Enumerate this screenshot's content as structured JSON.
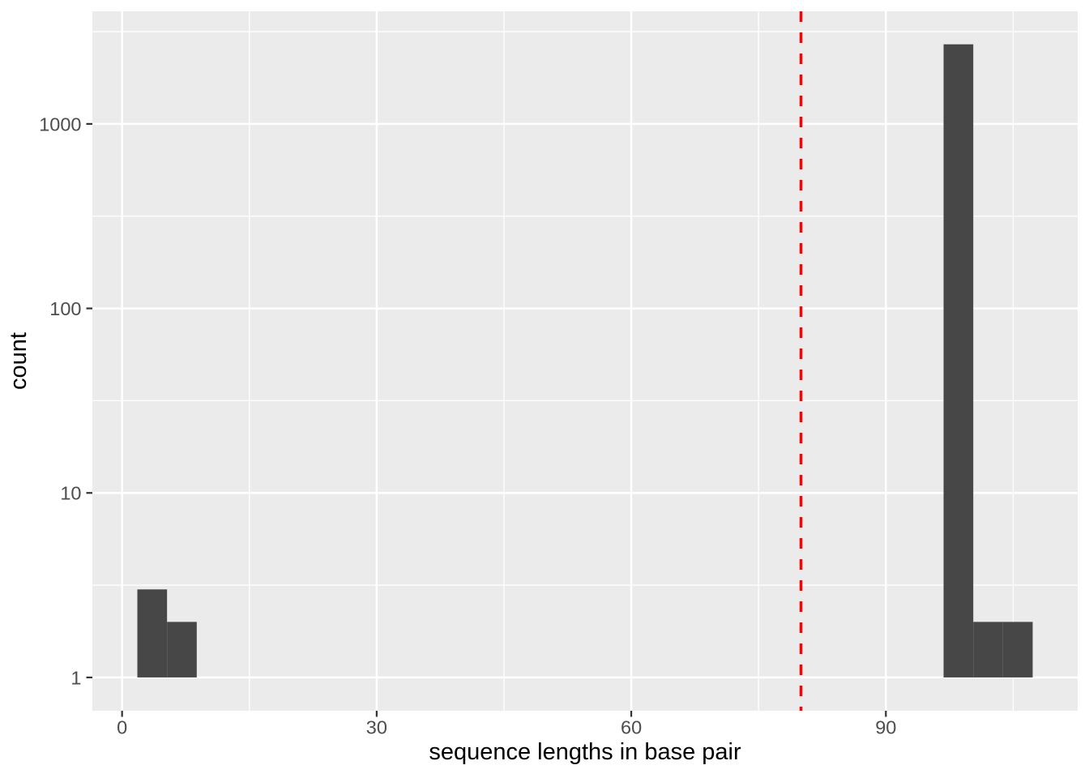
{
  "chart_data": {
    "type": "bar",
    "subtype": "histogram",
    "title": "",
    "xlabel": "sequence lengths in base pair",
    "ylabel": "count",
    "x_scale": "linear",
    "y_scale": "log10",
    "xlim": [
      -3.5,
      112.6
    ],
    "ylim": [
      0.66,
      4074
    ],
    "grid": "on",
    "legend": "none",
    "x_major_ticks": [
      0,
      30,
      60,
      90
    ],
    "x_major_tick_labels": [
      "0",
      "30",
      "60",
      "90"
    ],
    "x_minor_ticks": [
      15,
      45,
      75,
      105
    ],
    "y_major_ticks": [
      1,
      10,
      100,
      1000
    ],
    "y_major_tick_labels": [
      "1",
      "10",
      "100",
      "1000"
    ],
    "y_minor_ticks": [
      3.162,
      31.62,
      316.2,
      3162
    ],
    "bar_base": 1,
    "bins": [
      {
        "x0": 1.8,
        "x1": 5.3,
        "count": 3
      },
      {
        "x0": 5.3,
        "x1": 8.8,
        "count": 2
      },
      {
        "x0": 96.8,
        "x1": 100.3,
        "count": 2700
      },
      {
        "x0": 100.3,
        "x1": 103.8,
        "count": 2
      },
      {
        "x0": 103.8,
        "x1": 107.3,
        "count": 2
      }
    ],
    "vline": {
      "x": 80,
      "style": "dashed",
      "color": "#FF0000"
    },
    "colors": {
      "bar_fill": "#474747",
      "panel_bg": "#EBEBEB",
      "grid": "#FFFFFF",
      "tick_label": "#4D4D4D",
      "tick_mark": "#333333",
      "axis_title": "#000000"
    }
  }
}
